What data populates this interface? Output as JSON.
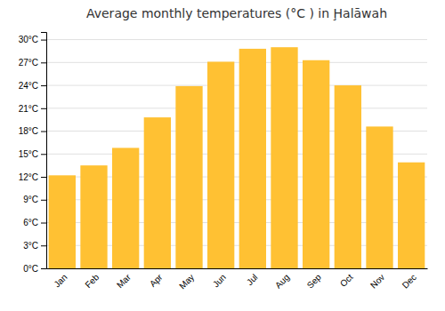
{
  "chart_data": {
    "type": "bar",
    "title": "Average monthly temperatures (°C ) in Ḩalāwah",
    "categories": [
      "Jan",
      "Feb",
      "Mar",
      "Apr",
      "May",
      "Jun",
      "Jul",
      "Aug",
      "Sep",
      "Oct",
      "Nov",
      "Dec"
    ],
    "values": [
      12.2,
      13.5,
      15.8,
      19.8,
      23.9,
      27.1,
      28.8,
      29.0,
      27.3,
      24.0,
      18.6,
      13.9
    ],
    "color": "#FFC133",
    "ylim": [
      0,
      31
    ],
    "yticks": [
      {
        "value": 0,
        "label": "0°C"
      },
      {
        "value": 3,
        "label": "3°C"
      },
      {
        "value": 6,
        "label": "6°C"
      },
      {
        "value": 9,
        "label": "9°C"
      },
      {
        "value": 12,
        "label": "12°C"
      },
      {
        "value": 15,
        "label": "15°C"
      },
      {
        "value": 18,
        "label": "18°C"
      },
      {
        "value": 21,
        "label": "21°C"
      },
      {
        "value": 24,
        "label": "24°C"
      },
      {
        "value": 27,
        "label": "27°C"
      },
      {
        "value": 30,
        "label": "30°C"
      }
    ],
    "grid": true
  }
}
